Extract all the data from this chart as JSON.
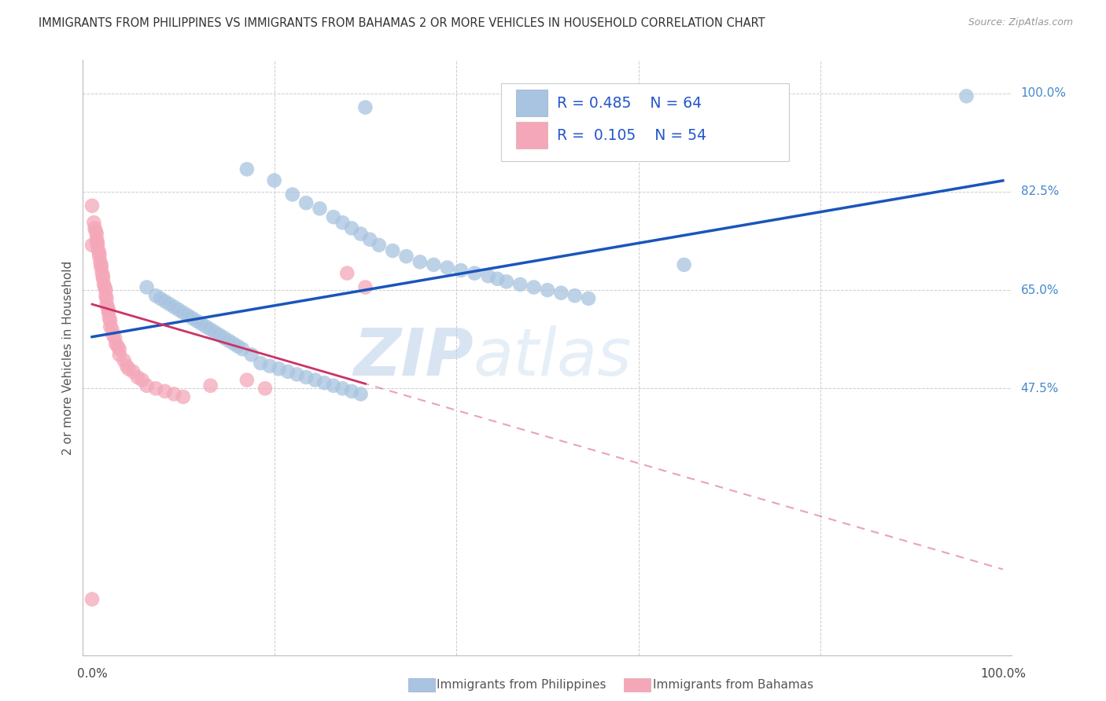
{
  "title": "IMMIGRANTS FROM PHILIPPINES VS IMMIGRANTS FROM BAHAMAS 2 OR MORE VEHICLES IN HOUSEHOLD CORRELATION CHART",
  "source": "Source: ZipAtlas.com",
  "ylabel": "2 or more Vehicles in Household",
  "blue_R": 0.485,
  "blue_N": 64,
  "pink_R": 0.105,
  "pink_N": 54,
  "blue_color": "#a8c4e0",
  "pink_color": "#f4a7b9",
  "blue_line_color": "#1a55bb",
  "pink_line_color": "#cc3366",
  "watermark_color": "#c8d8ee",
  "legend_label_blue": "Immigrants from Philippines",
  "legend_label_pink": "Immigrants from Bahamas",
  "blue_scatter_x": [
    0.3,
    0.65,
    0.96,
    0.17,
    0.2,
    0.22,
    0.235,
    0.25,
    0.265,
    0.275,
    0.285,
    0.295,
    0.305,
    0.315,
    0.33,
    0.345,
    0.36,
    0.375,
    0.39,
    0.405,
    0.42,
    0.435,
    0.445,
    0.455,
    0.47,
    0.485,
    0.5,
    0.515,
    0.53,
    0.545,
    0.06,
    0.07,
    0.075,
    0.08,
    0.085,
    0.09,
    0.095,
    0.1,
    0.105,
    0.11,
    0.115,
    0.12,
    0.125,
    0.13,
    0.135,
    0.14,
    0.145,
    0.15,
    0.155,
    0.16,
    0.165,
    0.175,
    0.185,
    0.195,
    0.205,
    0.215,
    0.225,
    0.235,
    0.245,
    0.255,
    0.265,
    0.275,
    0.285,
    0.295
  ],
  "blue_scatter_y": [
    0.975,
    0.695,
    0.995,
    0.865,
    0.845,
    0.82,
    0.805,
    0.795,
    0.78,
    0.77,
    0.76,
    0.75,
    0.74,
    0.73,
    0.72,
    0.71,
    0.7,
    0.695,
    0.69,
    0.685,
    0.68,
    0.675,
    0.67,
    0.665,
    0.66,
    0.655,
    0.65,
    0.645,
    0.64,
    0.635,
    0.655,
    0.64,
    0.635,
    0.63,
    0.625,
    0.62,
    0.615,
    0.61,
    0.605,
    0.6,
    0.595,
    0.59,
    0.585,
    0.58,
    0.575,
    0.57,
    0.565,
    0.56,
    0.555,
    0.55,
    0.545,
    0.535,
    0.52,
    0.515,
    0.51,
    0.505,
    0.5,
    0.495,
    0.49,
    0.485,
    0.48,
    0.475,
    0.47,
    0.465
  ],
  "pink_scatter_x": [
    0.0,
    0.0,
    0.0,
    0.002,
    0.003,
    0.004,
    0.005,
    0.005,
    0.006,
    0.006,
    0.007,
    0.008,
    0.008,
    0.009,
    0.01,
    0.01,
    0.011,
    0.012,
    0.012,
    0.013,
    0.014,
    0.015,
    0.015,
    0.016,
    0.016,
    0.017,
    0.018,
    0.018,
    0.019,
    0.02,
    0.02,
    0.022,
    0.023,
    0.025,
    0.026,
    0.028,
    0.03,
    0.03,
    0.035,
    0.038,
    0.04,
    0.045,
    0.05,
    0.055,
    0.06,
    0.07,
    0.08,
    0.09,
    0.1,
    0.13,
    0.17,
    0.19,
    0.28,
    0.3
  ],
  "pink_scatter_y": [
    0.8,
    0.73,
    0.1,
    0.77,
    0.76,
    0.755,
    0.75,
    0.74,
    0.735,
    0.73,
    0.72,
    0.715,
    0.71,
    0.7,
    0.695,
    0.69,
    0.68,
    0.675,
    0.67,
    0.66,
    0.655,
    0.65,
    0.64,
    0.635,
    0.625,
    0.62,
    0.615,
    0.61,
    0.6,
    0.595,
    0.585,
    0.58,
    0.57,
    0.565,
    0.555,
    0.55,
    0.545,
    0.535,
    0.525,
    0.515,
    0.51,
    0.505,
    0.495,
    0.49,
    0.48,
    0.475,
    0.47,
    0.465,
    0.46,
    0.48,
    0.49,
    0.475,
    0.68,
    0.655
  ],
  "background_color": "#ffffff",
  "grid_color": "#cccccc",
  "ytick_positions": [
    0.475,
    0.65,
    0.825,
    1.0
  ],
  "ytick_labels": [
    "47.5%",
    "65.0%",
    "82.5%",
    "100.0%"
  ]
}
